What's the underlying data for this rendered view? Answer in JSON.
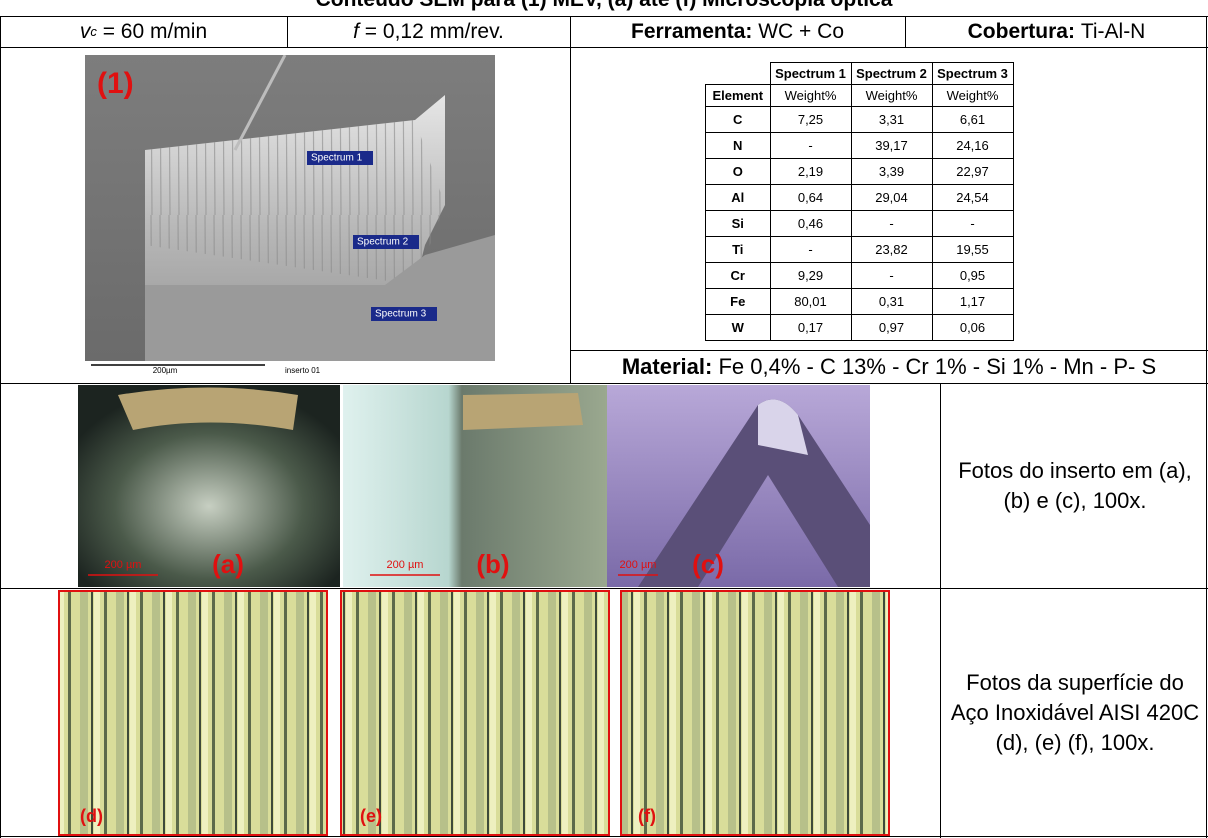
{
  "header": {
    "title": "Conteúdo SEM para (1) MEV, (a) até (f) Microscopia óptica"
  },
  "params": {
    "speed": {
      "symbol": "v",
      "subscript": "c",
      "value": "= 60 m/min"
    },
    "feed": {
      "symbol": "f",
      "value": "= 0,12 mm/rev."
    },
    "tool": {
      "label": "Ferramenta:",
      "value": "WC + Co"
    },
    "coating": {
      "label": "Cobertura:",
      "value": "Ti-Al-N"
    }
  },
  "sem": {
    "label": "(1)",
    "markers": [
      "Spectrum 1",
      "Spectrum 2",
      "Spectrum 3"
    ],
    "scale": "200µm",
    "caption": "inserto 01"
  },
  "table": {
    "columns": [
      "Spectrum 1",
      "Spectrum 2",
      "Spectrum 3"
    ],
    "unit_row": {
      "label": "Element",
      "units": [
        "Weight%",
        "Weight%",
        "Weight%"
      ]
    },
    "rows": [
      [
        "C",
        "7,25",
        "3,31",
        "6,61"
      ],
      [
        "N",
        "-",
        "39,17",
        "24,16"
      ],
      [
        "O",
        "2,19",
        "3,39",
        "22,97"
      ],
      [
        "Al",
        "0,64",
        "29,04",
        "24,54"
      ],
      [
        "Si",
        "0,46",
        "-",
        "-"
      ],
      [
        "Ti",
        "-",
        "23,82",
        "19,55"
      ],
      [
        "Cr",
        "9,29",
        "-",
        "0,95"
      ],
      [
        "Fe",
        "80,01",
        "0,31",
        "1,17"
      ],
      [
        "W",
        "0,17",
        "0,97",
        "0,06"
      ]
    ]
  },
  "material": {
    "label": "Material:",
    "value": "Fe 0,4% - C 13% - Cr 1% - Si 1% - Mn - P- S"
  },
  "photos": [
    {
      "label": "(a)",
      "scale": "200 µm"
    },
    {
      "label": "(b)",
      "scale": "200 µm"
    },
    {
      "label": "(c)",
      "scale": "200 µm"
    }
  ],
  "photos_caption": "Fotos do inserto em (a), (b) e (c), 100x.",
  "surfaces": [
    "(d)",
    "(e)",
    "(f)"
  ],
  "surfaces_caption": "Fotos da superfície do Aço Inoxidável AISI 420C (d), (e) (f), 100x."
}
